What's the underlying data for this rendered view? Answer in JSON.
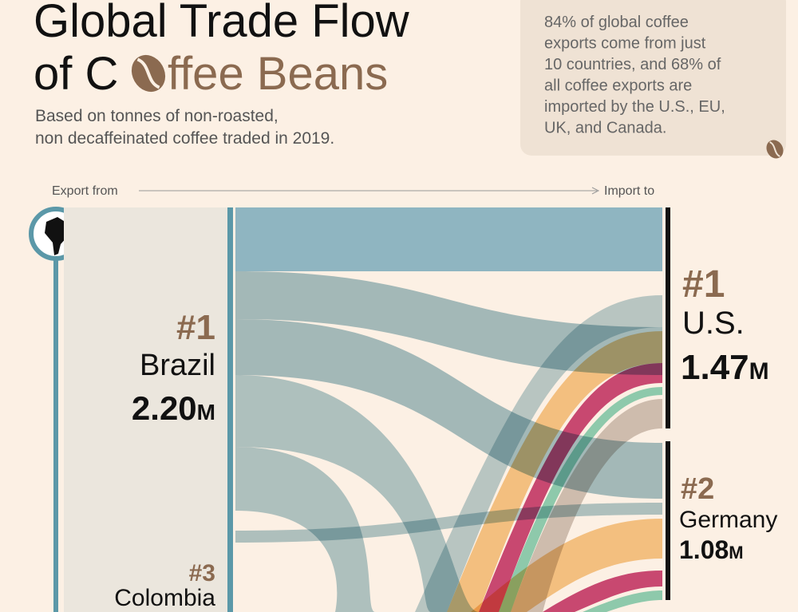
{
  "header": {
    "title_line1": "Global Trade Flow",
    "title_line2_prefix": "of C",
    "title_line2_suffix": "ffee Beans",
    "subtitle_line1": "Based on tonnes of non-roasted,",
    "subtitle_line2": "non decaffeinated coffee traded in 2019."
  },
  "note": {
    "lines": [
      "84% of global coffee",
      "exports come from just",
      "10 countries, and 68% of",
      "all coffee exports are",
      "imported by the U.S., EU,",
      "UK, and Canada."
    ]
  },
  "axis": {
    "from": "Export from",
    "to": "Import to"
  },
  "exporters": [
    {
      "rank": "#1",
      "name": "Brazil",
      "value": "2.20",
      "unit": "M"
    },
    {
      "rank": "#3",
      "name": "Colombia"
    }
  ],
  "importers": [
    {
      "rank": "#1",
      "name": "U.S.",
      "value": "1.47",
      "unit": "M"
    },
    {
      "rank": "#2",
      "name": "Germany",
      "value": "1.08",
      "unit": "M"
    }
  ]
}
